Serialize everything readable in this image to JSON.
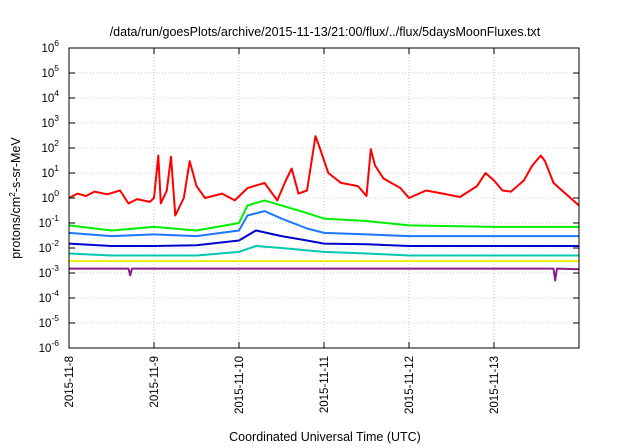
{
  "chart_data": {
    "type": "line",
    "title": "/data/run/goesPlots/archive/2015-11-13/21:00/flux/../flux/5daysMoonFluxes.txt",
    "xlabel": "Coordinated Universal Time (UTC)",
    "ylabel": {
      "base": "protons/cm",
      "exp": "2",
      "rest": "-s-sr-MeV"
    },
    "y_scale": "log",
    "ylim_exp": [
      -6,
      6
    ],
    "yticks": [
      {
        "base": "10",
        "exp": "6"
      },
      {
        "base": "10",
        "exp": "5"
      },
      {
        "base": "10",
        "exp": "4"
      },
      {
        "base": "10",
        "exp": "3"
      },
      {
        "base": "10",
        "exp": "2"
      },
      {
        "base": "10",
        "exp": "1"
      },
      {
        "base": "10",
        "exp": "0"
      },
      {
        "base": "10",
        "exp": "-1"
      },
      {
        "base": "10",
        "exp": "-2"
      },
      {
        "base": "10",
        "exp": "-3"
      },
      {
        "base": "10",
        "exp": "-4"
      },
      {
        "base": "10",
        "exp": "-5"
      },
      {
        "base": "10",
        "exp": "-6"
      }
    ],
    "xlim_days": [
      0,
      6.0
    ],
    "xticks": [
      "2015-11-8",
      "2015-11-9",
      "2015-11-10",
      "2015-11-11",
      "2015-11-12",
      "2015-11-13"
    ],
    "grid": true,
    "legend": "none",
    "series": [
      {
        "color": "#ff0000",
        "points": [
          [
            0,
            1.0
          ],
          [
            0.1,
            1.5
          ],
          [
            0.2,
            1.2
          ],
          [
            0.3,
            1.8
          ],
          [
            0.45,
            1.4
          ],
          [
            0.6,
            2.0
          ],
          [
            0.7,
            0.6
          ],
          [
            0.8,
            0.9
          ],
          [
            0.95,
            0.7
          ],
          [
            1.0,
            1.0
          ],
          [
            1.05,
            50
          ],
          [
            1.08,
            0.6
          ],
          [
            1.15,
            2
          ],
          [
            1.2,
            45
          ],
          [
            1.25,
            0.2
          ],
          [
            1.35,
            1.0
          ],
          [
            1.42,
            30
          ],
          [
            1.5,
            3
          ],
          [
            1.6,
            1.0
          ],
          [
            1.8,
            1.5
          ],
          [
            1.95,
            0.8
          ],
          [
            2.1,
            2.5
          ],
          [
            2.3,
            4
          ],
          [
            2.45,
            0.8
          ],
          [
            2.55,
            5
          ],
          [
            2.62,
            15
          ],
          [
            2.7,
            1.5
          ],
          [
            2.8,
            2.0
          ],
          [
            2.86,
            40
          ],
          [
            2.9,
            300
          ],
          [
            2.95,
            100
          ],
          [
            3.05,
            10
          ],
          [
            3.2,
            4
          ],
          [
            3.4,
            3
          ],
          [
            3.5,
            1.2
          ],
          [
            3.55,
            90
          ],
          [
            3.6,
            20
          ],
          [
            3.7,
            6
          ],
          [
            3.9,
            2.5
          ],
          [
            4.0,
            1.0
          ],
          [
            4.2,
            2
          ],
          [
            4.4,
            1.5
          ],
          [
            4.6,
            1.1
          ],
          [
            4.8,
            3
          ],
          [
            4.9,
            10
          ],
          [
            5.0,
            5
          ],
          [
            5.1,
            2
          ],
          [
            5.2,
            1.8
          ],
          [
            5.35,
            5
          ],
          [
            5.45,
            20
          ],
          [
            5.55,
            50
          ],
          [
            5.6,
            30
          ],
          [
            5.7,
            4
          ],
          [
            5.8,
            2
          ],
          [
            5.9,
            1.0
          ],
          [
            6.0,
            0.5
          ]
        ]
      },
      {
        "color": "#00ee00",
        "points": [
          [
            0,
            0.08
          ],
          [
            0.5,
            0.05
          ],
          [
            1.0,
            0.07
          ],
          [
            1.5,
            0.05
          ],
          [
            2.0,
            0.1
          ],
          [
            2.1,
            0.5
          ],
          [
            2.3,
            0.8
          ],
          [
            2.5,
            0.5
          ],
          [
            2.8,
            0.25
          ],
          [
            3.0,
            0.15
          ],
          [
            3.5,
            0.12
          ],
          [
            4.0,
            0.08
          ],
          [
            5.0,
            0.07
          ],
          [
            6.0,
            0.07
          ]
        ]
      },
      {
        "color": "#1e78ff",
        "points": [
          [
            0,
            0.04
          ],
          [
            0.5,
            0.03
          ],
          [
            1.0,
            0.035
          ],
          [
            1.5,
            0.03
          ],
          [
            2.0,
            0.05
          ],
          [
            2.1,
            0.2
          ],
          [
            2.3,
            0.3
          ],
          [
            2.5,
            0.15
          ],
          [
            2.8,
            0.06
          ],
          [
            3.0,
            0.04
          ],
          [
            3.5,
            0.035
          ],
          [
            4.0,
            0.03
          ],
          [
            5.0,
            0.03
          ],
          [
            6.0,
            0.03
          ]
        ]
      },
      {
        "color": "#0000cc",
        "points": [
          [
            0,
            0.015
          ],
          [
            0.5,
            0.012
          ],
          [
            1.0,
            0.012
          ],
          [
            1.5,
            0.013
          ],
          [
            2.0,
            0.02
          ],
          [
            2.2,
            0.05
          ],
          [
            2.5,
            0.03
          ],
          [
            2.8,
            0.02
          ],
          [
            3.0,
            0.015
          ],
          [
            3.5,
            0.014
          ],
          [
            4.0,
            0.012
          ],
          [
            5.0,
            0.012
          ],
          [
            6.0,
            0.012
          ]
        ]
      },
      {
        "color": "#00c8b4",
        "points": [
          [
            0,
            0.006
          ],
          [
            0.5,
            0.005
          ],
          [
            1.0,
            0.005
          ],
          [
            1.5,
            0.005
          ],
          [
            2.0,
            0.007
          ],
          [
            2.2,
            0.012
          ],
          [
            2.5,
            0.01
          ],
          [
            2.8,
            0.008
          ],
          [
            3.0,
            0.007
          ],
          [
            3.5,
            0.006
          ],
          [
            4.0,
            0.005
          ],
          [
            5.0,
            0.005
          ],
          [
            6.0,
            0.005
          ]
        ]
      },
      {
        "color": "#eeee00",
        "points": [
          [
            0,
            0.003
          ],
          [
            1.0,
            0.003
          ],
          [
            2.0,
            0.003
          ],
          [
            3.0,
            0.003
          ],
          [
            4.0,
            0.003
          ],
          [
            5.0,
            0.003
          ],
          [
            6.0,
            0.003
          ]
        ]
      },
      {
        "color": "#8b1a8b",
        "points": [
          [
            0,
            0.0015
          ],
          [
            0.7,
            0.0015
          ],
          [
            0.72,
            0.0008
          ],
          [
            0.74,
            0.0015
          ],
          [
            1.5,
            0.0015
          ],
          [
            2.0,
            0.0015
          ],
          [
            3.0,
            0.0015
          ],
          [
            4.0,
            0.0015
          ],
          [
            5.0,
            0.0015
          ],
          [
            5.7,
            0.0015
          ],
          [
            5.72,
            0.0005
          ],
          [
            5.74,
            0.0015
          ],
          [
            6.0,
            0.0014
          ]
        ]
      }
    ]
  }
}
